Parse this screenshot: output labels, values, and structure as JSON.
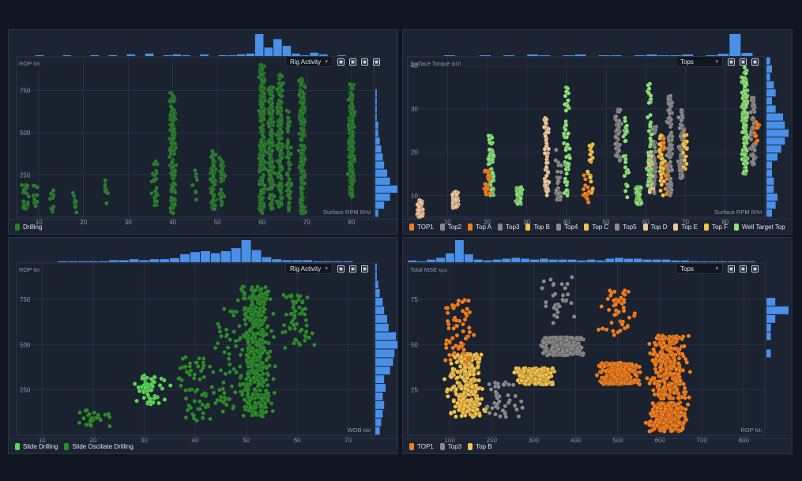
{
  "colors": {
    "bg": "#0f1521",
    "panel": "#1c2433",
    "grid": "#2f3a4d",
    "hist": "#4a90e8",
    "axis_text": "#8f99a8"
  },
  "panels": [
    {
      "dropdown": "Rig Activity",
      "y_title": "ROP",
      "y_unit": "ft/h",
      "x_title": "Surface RPM",
      "x_unit": "RPM",
      "legend": [
        {
          "label": "Drilling",
          "color": "#2e7d32"
        }
      ]
    },
    {
      "dropdown": "Tops",
      "y_title": "Surface Torque",
      "y_unit": "lbf.ft",
      "x_title": "Surface RPM",
      "x_unit": "RPM",
      "legend": [
        {
          "label": "TOP1",
          "color": "#f07f22"
        },
        {
          "label": "Top2",
          "color": "#8a8a8a"
        },
        {
          "label": "Top A",
          "color": "#f07f22"
        },
        {
          "label": "Top3",
          "color": "#8a8a8a"
        },
        {
          "label": "Top B",
          "color": "#f2c14e"
        },
        {
          "label": "Top4",
          "color": "#8a8a8a"
        },
        {
          "label": "Top C",
          "color": "#f2c14e"
        },
        {
          "label": "Top5",
          "color": "#8a8a8a"
        },
        {
          "label": "Top D",
          "color": "#f0c8a0"
        },
        {
          "label": "Top E",
          "color": "#f0c8a0"
        },
        {
          "label": "Top F",
          "color": "#f2c14e"
        },
        {
          "label": "Well Target Top",
          "color": "#8ee07a"
        }
      ]
    },
    {
      "dropdown": "Rig Activity",
      "y_title": "ROP",
      "y_unit": "ft/h",
      "x_title": "WOB",
      "x_unit": "klbf",
      "legend": [
        {
          "label": "Slide Drilling",
          "color": "#5bd65b"
        },
        {
          "label": "Slide Osciliate Drilling",
          "color": "#2e8b2e"
        }
      ]
    },
    {
      "dropdown": "Tops",
      "y_title": "Total MSE",
      "y_unit": "kpsi",
      "x_title": "ROP",
      "x_unit": "ft/h",
      "legend": [
        {
          "label": "TOP1",
          "color": "#f07f22"
        },
        {
          "label": "Top3",
          "color": "#8a8a8a"
        },
        {
          "label": "Top B",
          "color": "#f2c14e"
        }
      ]
    }
  ],
  "chart_data": [
    {
      "type": "scatter",
      "xlabel": "Surface RPM",
      "ylabel": "ROP",
      "xlim": [
        5,
        85
      ],
      "ylim": [
        0,
        950
      ],
      "xticks": [
        10,
        20,
        30,
        40,
        50,
        60,
        70,
        80
      ],
      "yticks": [
        250,
        500,
        750
      ],
      "grid": true,
      "clusters": [
        {
          "series": 0,
          "x": 2,
          "y": [
            40,
            230
          ],
          "n": 20
        },
        {
          "series": 0,
          "x": 7,
          "y": [
            50,
            200
          ],
          "n": 30
        },
        {
          "series": 0,
          "x": 9,
          "y": [
            60,
            190
          ],
          "n": 10
        },
        {
          "series": 0,
          "x": 13,
          "y": [
            30,
            170
          ],
          "n": 12
        },
        {
          "series": 0,
          "x": 18,
          "y": [
            20,
            150
          ],
          "n": 10
        },
        {
          "series": 0,
          "x": 25,
          "y": [
            60,
            220
          ],
          "n": 8
        },
        {
          "series": 0,
          "x": 36,
          "y": [
            60,
            340
          ],
          "n": 30
        },
        {
          "series": 0,
          "x": 40,
          "y": [
            20,
            740
          ],
          "n": 140
        },
        {
          "series": 0,
          "x": 45,
          "y": [
            100,
            280
          ],
          "n": 8
        },
        {
          "series": 0,
          "x": 49,
          "y": [
            40,
            400
          ],
          "n": 70
        },
        {
          "series": 0,
          "x": 51,
          "y": [
            60,
            360
          ],
          "n": 40
        },
        {
          "series": 0,
          "x": 60,
          "y": [
            20,
            910
          ],
          "n": 220
        },
        {
          "series": 0,
          "x": 62,
          "y": [
            30,
            770
          ],
          "n": 150
        },
        {
          "series": 0,
          "x": 64,
          "y": [
            60,
            860
          ],
          "n": 150
        },
        {
          "series": 0,
          "x": 66,
          "y": [
            30,
            660
          ],
          "n": 60
        },
        {
          "series": 0,
          "x": 69,
          "y": [
            20,
            820
          ],
          "n": 180
        },
        {
          "series": 0,
          "x": 80,
          "y": [
            120,
            790
          ],
          "n": 180
        }
      ],
      "xhist": [
        0,
        0,
        1,
        0,
        0,
        1,
        0,
        0,
        1,
        0,
        1,
        0,
        2,
        0,
        3,
        0,
        1,
        2,
        1,
        0,
        2,
        0,
        1,
        1,
        2,
        3,
        26,
        10,
        20,
        12,
        3,
        1,
        4,
        2,
        0,
        1,
        0,
        0,
        0
      ],
      "yhist": [
        2,
        6,
        10,
        15,
        10,
        8,
        6,
        5,
        4,
        3,
        2,
        2,
        1,
        1,
        1,
        1,
        0,
        0,
        0,
        0
      ]
    },
    {
      "type": "scatter",
      "xlabel": "Surface RPM",
      "ylabel": "Surface Torque",
      "xlim": [
        0,
        90
      ],
      "ylim": [
        5,
        42
      ],
      "xticks": [
        10,
        20,
        30,
        40,
        50,
        60,
        70,
        80
      ],
      "yticks": [
        10,
        20,
        30,
        40
      ],
      "grid": true,
      "clusters": [
        {
          "series": 11,
          "x": 85,
          "y": [
            15,
            40
          ],
          "n": 160
        },
        {
          "series": 3,
          "x": 87,
          "y": [
            17,
            33
          ],
          "n": 60
        },
        {
          "series": 0,
          "x": 88,
          "y": [
            22,
            28
          ],
          "n": 10
        },
        {
          "series": 1,
          "x": 69,
          "y": [
            14,
            30
          ],
          "n": 70
        },
        {
          "series": 4,
          "x": 70,
          "y": [
            16,
            24
          ],
          "n": 20
        },
        {
          "series": 3,
          "x": 66,
          "y": [
            10,
            33
          ],
          "n": 90
        },
        {
          "series": 10,
          "x": 64,
          "y": [
            10,
            24
          ],
          "n": 40
        },
        {
          "series": 5,
          "x": 62,
          "y": [
            10,
            26
          ],
          "n": 60
        },
        {
          "series": 8,
          "x": 61,
          "y": [
            10,
            20
          ],
          "n": 30
        },
        {
          "series": 11,
          "x": 61,
          "y": [
            12,
            36
          ],
          "n": 40
        },
        {
          "series": 7,
          "x": 53,
          "y": [
            18,
            30
          ],
          "n": 50
        },
        {
          "series": 11,
          "x": 55,
          "y": [
            8,
            28
          ],
          "n": 30
        },
        {
          "series": 11,
          "x": 40,
          "y": [
            10,
            35
          ],
          "n": 60
        },
        {
          "series": 9,
          "x": 35,
          "y": [
            10,
            28
          ],
          "n": 60
        },
        {
          "series": 1,
          "x": 38,
          "y": [
            8,
            22
          ],
          "n": 30
        },
        {
          "series": 11,
          "x": 21,
          "y": [
            10,
            24
          ],
          "n": 70
        },
        {
          "series": 2,
          "x": 20,
          "y": [
            10,
            16
          ],
          "n": 20
        },
        {
          "series": 8,
          "x": 12,
          "y": [
            7,
            11
          ],
          "n": 80
        },
        {
          "series": 8,
          "x": 3,
          "y": [
            5,
            9
          ],
          "n": 60
        },
        {
          "series": 11,
          "x": 28,
          "y": [
            8,
            12
          ],
          "n": 60
        },
        {
          "series": 11,
          "x": 58,
          "y": [
            8,
            12
          ],
          "n": 60
        },
        {
          "series": 6,
          "x": 46,
          "y": [
            10,
            22
          ],
          "n": 20
        },
        {
          "series": 0,
          "x": 45,
          "y": [
            8,
            16
          ],
          "n": 12
        },
        {
          "series": 0,
          "x": 65,
          "y": [
            10,
            24
          ],
          "n": 12
        }
      ],
      "xhist": [
        0,
        0,
        0,
        1,
        0,
        0,
        1,
        0,
        1,
        0,
        2,
        1,
        0,
        1,
        2,
        0,
        1,
        1,
        0,
        1,
        2,
        1,
        1,
        2,
        0,
        1,
        3,
        28,
        4,
        0
      ],
      "yhist": [
        3,
        5,
        6,
        4,
        4,
        3,
        3,
        6,
        8,
        10,
        12,
        10,
        9,
        5,
        3,
        5,
        4,
        2,
        3,
        2
      ]
    },
    {
      "type": "scatter",
      "xlabel": "WOB",
      "ylabel": "ROP",
      "xlim": [
        5,
        75
      ],
      "ylim": [
        0,
        950
      ],
      "xticks": [
        10,
        20,
        30,
        40,
        50,
        60,
        70
      ],
      "yticks": [
        250,
        500,
        750
      ],
      "grid": true,
      "clusters": [
        {
          "series": 0,
          "x": 31,
          "y": [
            170,
            330
          ],
          "n": 60
        },
        {
          "series": 1,
          "x": 52,
          "y": [
            100,
            820
          ],
          "n": 420
        },
        {
          "series": 1,
          "x": 40,
          "y": [
            80,
            430
          ],
          "n": 60
        },
        {
          "series": 1,
          "x": 60,
          "y": [
            480,
            780
          ],
          "n": 60
        },
        {
          "series": 1,
          "x": 20,
          "y": [
            40,
            140
          ],
          "n": 25
        },
        {
          "series": 1,
          "x": 46,
          "y": [
            100,
            700
          ],
          "n": 50
        }
      ],
      "xhist": [
        0,
        0,
        0,
        0,
        1,
        1,
        1,
        1,
        1,
        2,
        2,
        3,
        2,
        3,
        3,
        4,
        8,
        10,
        11,
        9,
        11,
        14,
        22,
        12,
        5,
        3,
        2,
        2,
        2,
        1,
        1,
        1,
        1,
        0,
        0
      ],
      "yhist": [
        3,
        4,
        5,
        6,
        5,
        7,
        6,
        10,
        12,
        13,
        15,
        14,
        9,
        8,
        6,
        5,
        3,
        2,
        1,
        1
      ]
    },
    {
      "type": "scatter",
      "xlabel": "ROP",
      "ylabel": "Total MSE",
      "xlim": [
        0,
        850
      ],
      "ylim": [
        0,
        95
      ],
      "xticks": [
        100,
        200,
        300,
        400,
        500,
        600,
        700,
        800
      ],
      "yticks": [
        25,
        50,
        75
      ],
      "grid": true,
      "clusters": [
        {
          "series": 2,
          "x": 140,
          "y": [
            10,
            45
          ],
          "n": 260
        },
        {
          "series": 2,
          "x": 300,
          "y": [
            28,
            37
          ],
          "n": 200
        },
        {
          "series": 1,
          "x": 370,
          "y": [
            44,
            54
          ],
          "n": 360
        },
        {
          "series": 1,
          "x": 230,
          "y": [
            10,
            30
          ],
          "n": 40
        },
        {
          "series": 0,
          "x": 500,
          "y": [
            28,
            40
          ],
          "n": 400
        },
        {
          "series": 0,
          "x": 620,
          "y": [
            20,
            55
          ],
          "n": 320
        },
        {
          "series": 0,
          "x": 620,
          "y": [
            2,
            18
          ],
          "n": 260
        },
        {
          "series": 0,
          "x": 120,
          "y": [
            40,
            75
          ],
          "n": 60
        },
        {
          "series": 1,
          "x": 360,
          "y": [
            60,
            90
          ],
          "n": 30
        },
        {
          "series": 0,
          "x": 500,
          "y": [
            55,
            80
          ],
          "n": 50
        }
      ],
      "xhist": [
        2,
        1,
        3,
        5,
        10,
        25,
        9,
        3,
        2,
        3,
        4,
        5,
        4,
        3,
        4,
        3,
        3,
        3,
        2,
        3,
        2,
        4,
        5,
        4,
        4,
        3,
        3,
        3,
        2,
        2,
        1,
        1,
        1,
        1,
        1,
        1,
        1,
        0
      ],
      "yhist": [
        0,
        0,
        0,
        0,
        0,
        0,
        0,
        0,
        0,
        1,
        0,
        1,
        1,
        2,
        5,
        2,
        0,
        0,
        0,
        0
      ]
    }
  ]
}
